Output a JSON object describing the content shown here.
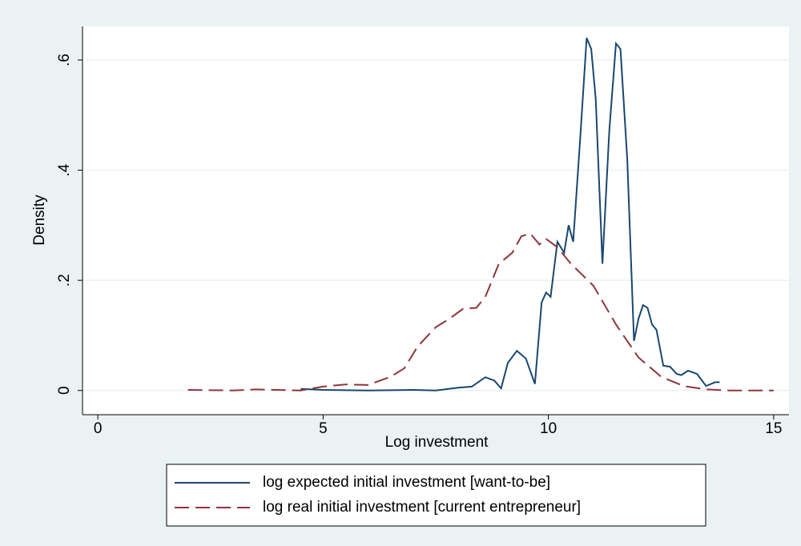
{
  "chart_data": {
    "type": "line",
    "xlabel": "Log investment",
    "ylabel": "Density",
    "xlim": [
      -0.34,
      15.34
    ],
    "xticks": [
      0,
      5,
      10,
      15
    ],
    "ylim": [
      -0.044,
      0.661
    ],
    "yticks": [
      0,
      {
        "value": 0.2,
        "label": ".2"
      },
      {
        "value": 0.4,
        "label": ".4"
      },
      {
        "value": 0.6,
        "label": ".6"
      }
    ],
    "grid": true,
    "series": [
      {
        "name": "log expected initial investment [want-to-be]",
        "color": "#1a476f",
        "dash": "solid",
        "x": [
          4.5,
          5,
          6,
          7,
          7.5,
          8,
          8.3,
          8.6,
          8.8,
          8.95,
          9.1,
          9.3,
          9.5,
          9.7,
          9.85,
          9.95,
          10.05,
          10.2,
          10.35,
          10.45,
          10.55,
          10.7,
          10.85,
          10.95,
          11.05,
          11.2,
          11.35,
          11.5,
          11.6,
          11.75,
          11.9,
          12,
          12.1,
          12.2,
          12.3,
          12.4,
          12.55,
          12.7,
          12.85,
          12.95,
          13.1,
          13.3,
          13.5,
          13.7,
          13.8
        ],
        "values": [
          0.003,
          0.001,
          0,
          0.001,
          0,
          0.005,
          0.007,
          0.024,
          0.018,
          0.004,
          0.05,
          0.072,
          0.058,
          0.012,
          0.16,
          0.178,
          0.17,
          0.27,
          0.25,
          0.3,
          0.27,
          0.45,
          0.64,
          0.62,
          0.53,
          0.23,
          0.47,
          0.63,
          0.62,
          0.42,
          0.09,
          0.13,
          0.155,
          0.15,
          0.12,
          0.11,
          0.045,
          0.043,
          0.03,
          0.028,
          0.036,
          0.03,
          0.008,
          0.015,
          0.015
        ]
      },
      {
        "name": "log real initial investment [current entrepreneur]",
        "color": "#90353b",
        "dash": "dashed",
        "x": [
          2,
          3,
          3.5,
          4.5,
          5,
          5.5,
          6,
          6.5,
          6.8,
          7.1,
          7.5,
          7.8,
          8.1,
          8.4,
          8.6,
          8.9,
          9.2,
          9.4,
          9.6,
          9.8,
          9.95,
          10.2,
          10.5,
          11,
          11.5,
          12,
          12.5,
          13,
          13.5,
          14,
          15
        ],
        "values": [
          0.001,
          0,
          0.002,
          0,
          0.007,
          0.011,
          0.01,
          0.025,
          0.04,
          0.08,
          0.115,
          0.13,
          0.148,
          0.15,
          0.17,
          0.23,
          0.25,
          0.28,
          0.285,
          0.265,
          0.275,
          0.26,
          0.23,
          0.19,
          0.12,
          0.06,
          0.025,
          0.008,
          0.002,
          0,
          0
        ]
      }
    ]
  }
}
